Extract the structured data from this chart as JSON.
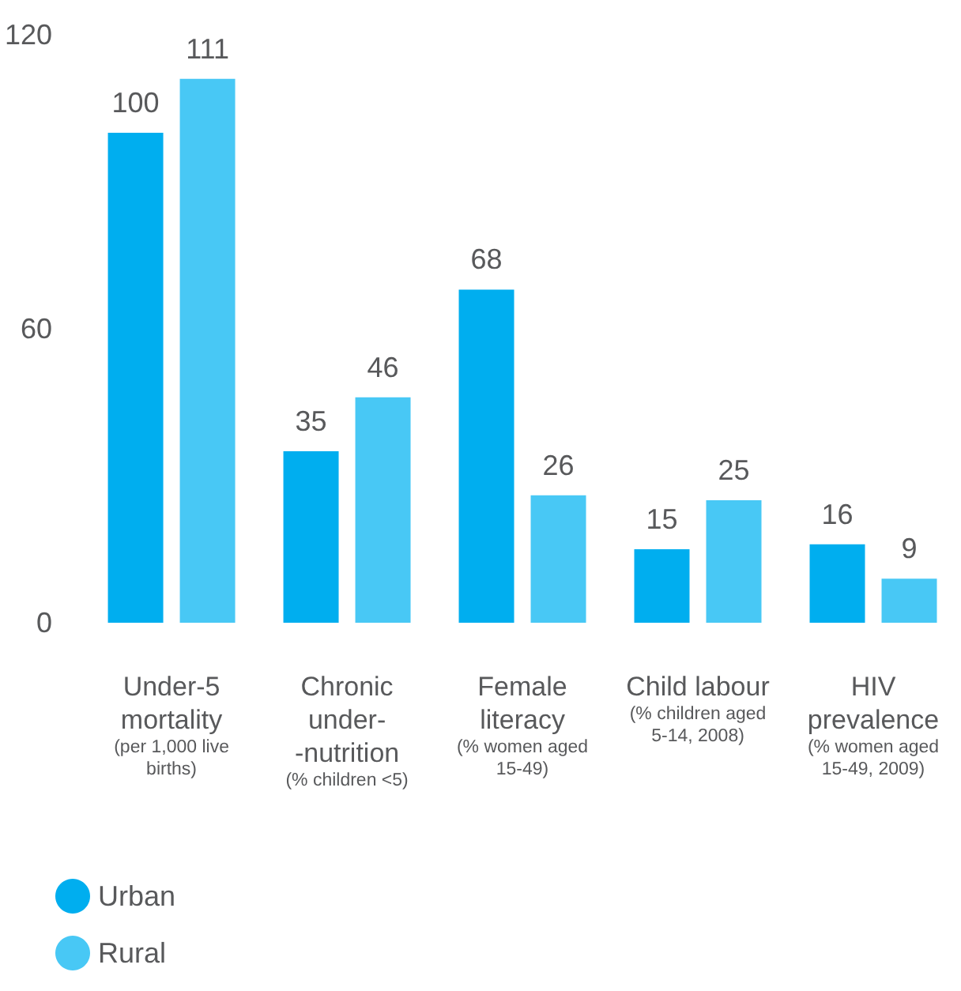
{
  "chart_data": {
    "type": "bar",
    "categories": [
      "Under-5\nmortality\n(per 1,000 live\nbirths)",
      "Chronic\nunder-\n-nutrition\n(% children <5)",
      "Female\nliteracy\n(% women aged\n15-49)",
      "Child labour\n(% children aged\n5-14, 2008)",
      "HIV\nprevalence\n(% women aged\n15-49, 2009)"
    ],
    "series": [
      {
        "name": "Urban",
        "color": "#00aeef",
        "values": [
          100,
          35,
          68,
          15,
          16
        ]
      },
      {
        "name": "Rural",
        "color": "#48c8f5",
        "values": [
          111,
          46,
          26,
          25,
          9
        ]
      }
    ],
    "ylim": [
      0,
      120
    ],
    "yticks": [
      0,
      60,
      120
    ],
    "grid": false,
    "legend": "bottom left",
    "data_labels": true
  }
}
